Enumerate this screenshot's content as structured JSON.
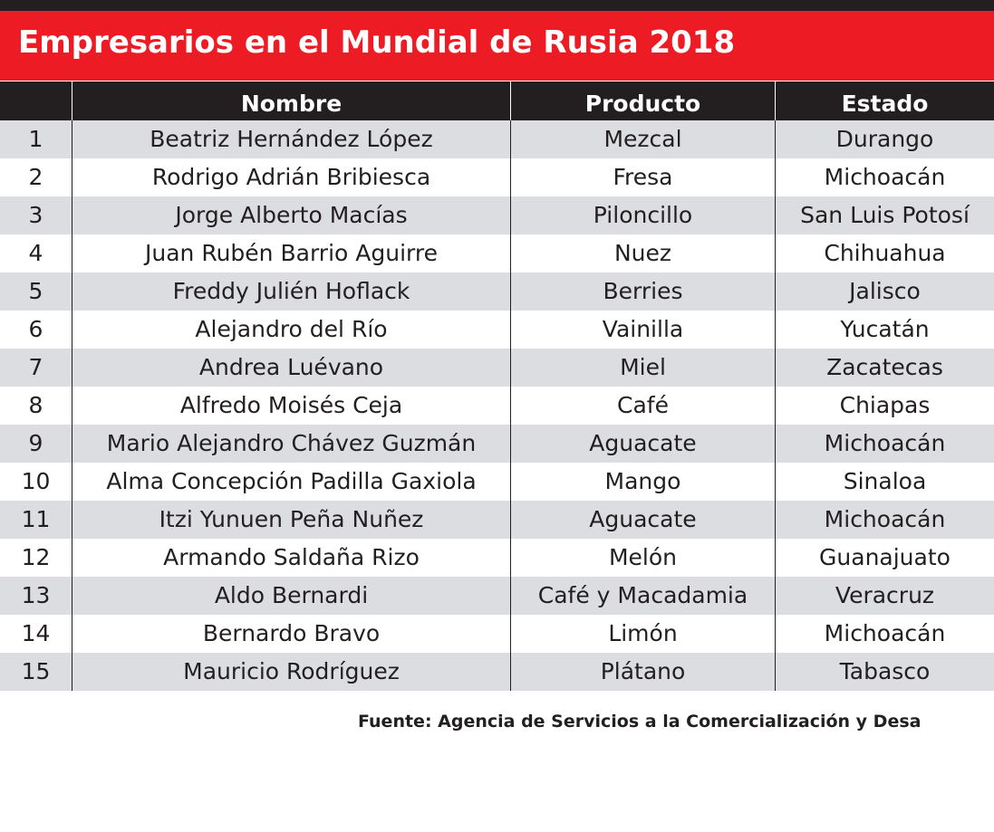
{
  "header": {
    "title": "Empresarios en el Mundial de Rusia 2018"
  },
  "table": {
    "columns": [
      "Nombre",
      "Producto",
      "Estado"
    ],
    "rows": [
      [
        "1",
        "Beatriz Hernández López",
        "Mezcal",
        "Durango"
      ],
      [
        "2",
        "Rodrigo Adrián Bribiesca",
        "Fresa",
        "Michoacán"
      ],
      [
        "3",
        "Jorge Alberto Macías",
        "Piloncillo",
        "San Luis Potosí"
      ],
      [
        "4",
        "Juan Rubén Barrio Aguirre",
        "Nuez",
        "Chihuahua"
      ],
      [
        "5",
        "Freddy Julién Hoflack",
        "Berries",
        "Jalisco"
      ],
      [
        "6",
        "Alejandro del Río",
        "Vainilla",
        "Yucatán"
      ],
      [
        "7",
        "Andrea Luévano",
        "Miel",
        "Zacatecas"
      ],
      [
        "8",
        "Alfredo Moisés Ceja",
        "Café",
        "Chiapas"
      ],
      [
        "9",
        "Mario Alejandro Chávez Guzmán",
        "Aguacate",
        "Michoacán"
      ],
      [
        "10",
        "Alma Concepción Padilla Gaxiola",
        "Mango",
        "Sinaloa"
      ],
      [
        "11",
        "Itzi Yunuen Peña Nuñez",
        "Aguacate",
        "Michoacán"
      ],
      [
        "12",
        "Armando Saldaña Rizo",
        "Melón",
        "Guanajuato"
      ],
      [
        "13",
        "Aldo Bernardi",
        "Café y Macadamia",
        "Veracruz"
      ],
      [
        "14",
        "Bernardo Bravo",
        "Limón",
        "Michoacán"
      ],
      [
        "15",
        "Mauricio Rodríguez",
        "Plátano",
        "Tabasco"
      ]
    ]
  },
  "footer": {
    "source": "Fuente: Agencia de Servicios a la Comercialización y Desa"
  }
}
